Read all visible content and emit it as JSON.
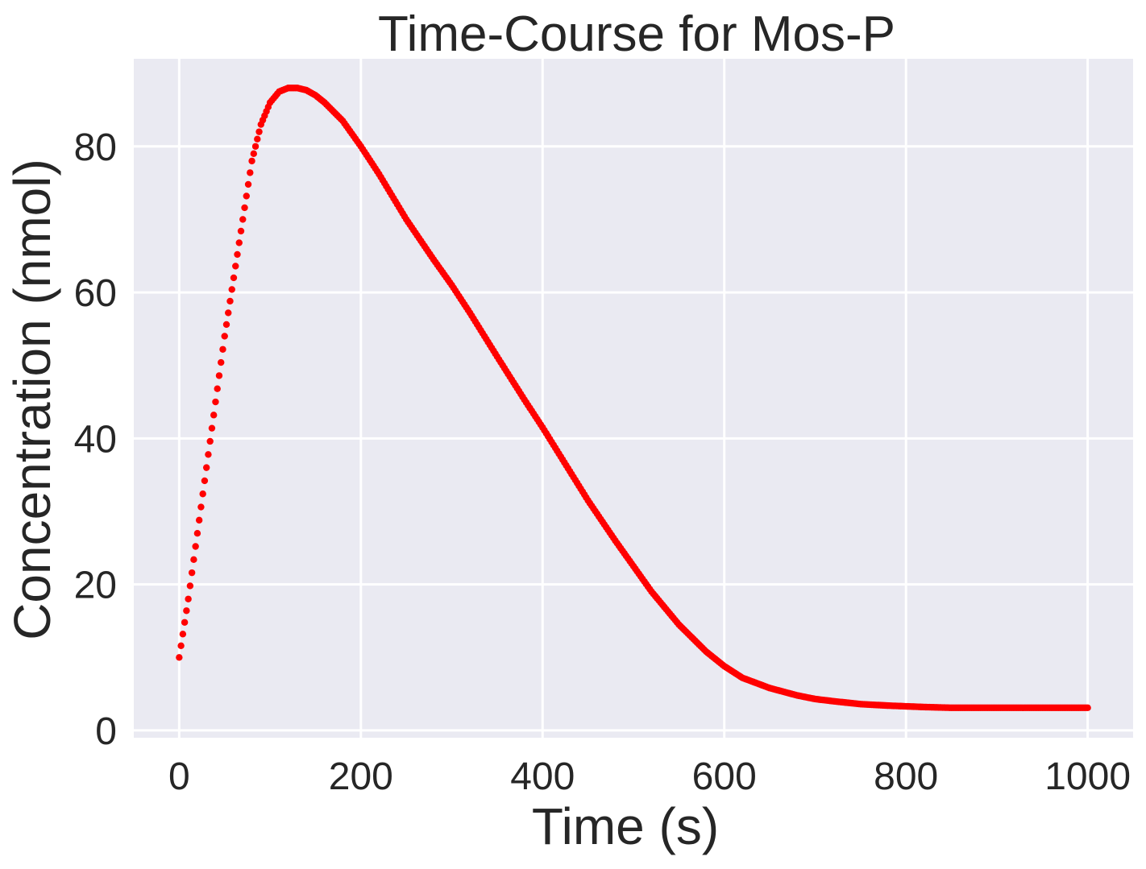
{
  "chart_data": {
    "type": "scatter",
    "title": "Time-Course for Mos-P",
    "xlabel": "Time (s)",
    "ylabel": "Concentration (nmol)",
    "xlim": [
      -50,
      1050
    ],
    "ylim": [
      -1,
      92
    ],
    "xticks": [
      0,
      200,
      400,
      600,
      800,
      1000
    ],
    "yticks": [
      0,
      20,
      40,
      60,
      80
    ],
    "grid": true,
    "legend": "none",
    "colors": {
      "background": "#eaeaf2",
      "grid": "#ffffff",
      "marker": "#ff0000",
      "text": "#262626"
    },
    "series": [
      {
        "color": "#ff0000",
        "marker": "circle",
        "x": [
          0,
          10,
          20,
          30,
          40,
          50,
          60,
          70,
          80,
          90,
          100,
          110,
          120,
          130,
          140,
          150,
          160,
          180,
          200,
          220,
          250,
          280,
          300,
          320,
          350,
          380,
          400,
          420,
          450,
          480,
          500,
          520,
          550,
          580,
          600,
          620,
          650,
          680,
          700,
          720,
          750,
          780,
          800,
          820,
          850,
          880,
          900,
          920,
          950,
          980,
          1000
        ],
        "y": [
          10,
          18,
          27,
          36,
          45,
          54,
          62,
          70,
          78,
          83,
          86,
          87.5,
          88,
          88,
          87.7,
          87,
          86,
          83.5,
          80,
          76.2,
          70,
          64.5,
          61,
          57.2,
          51.2,
          45.3,
          41.5,
          37.5,
          31.5,
          26,
          22.5,
          19,
          14.5,
          10.8,
          8.8,
          7.2,
          5.8,
          4.8,
          4.3,
          4,
          3.6,
          3.4,
          3.3,
          3.2,
          3.1,
          3.1,
          3.1,
          3.1,
          3.1,
          3.1,
          3.1
        ]
      }
    ]
  }
}
